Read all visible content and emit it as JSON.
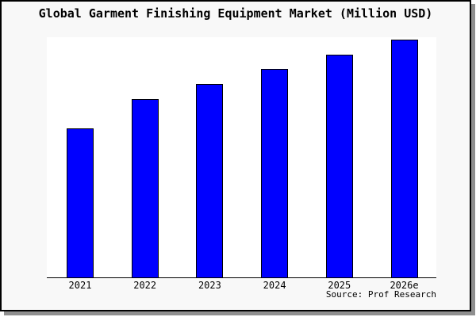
{
  "frame": {
    "background": "#f8f8f8",
    "plot_background": "#ffffff",
    "border_color": "#000000",
    "shadow_color": "#8f8f8f"
  },
  "chart_data": {
    "type": "bar",
    "title": "Global Garment Finishing Equipment Market (Million USD)",
    "categories": [
      "2021",
      "2022",
      "2023",
      "2024",
      "2025",
      "2026e"
    ],
    "values": [
      62.7,
      75.0,
      81.3,
      87.6,
      93.7,
      100
    ],
    "values_note": "Y-axis has no tick labels or gridlines; values are relative bar heights estimated from the image, scaled so the 2026e bar = 100.",
    "xlabel": "",
    "ylabel": "",
    "ylim": [
      0,
      101
    ],
    "grid": false,
    "legend": false,
    "bar_color": "#0000ff",
    "bar_border_color": "#000000",
    "source": "Source: Prof Research"
  }
}
